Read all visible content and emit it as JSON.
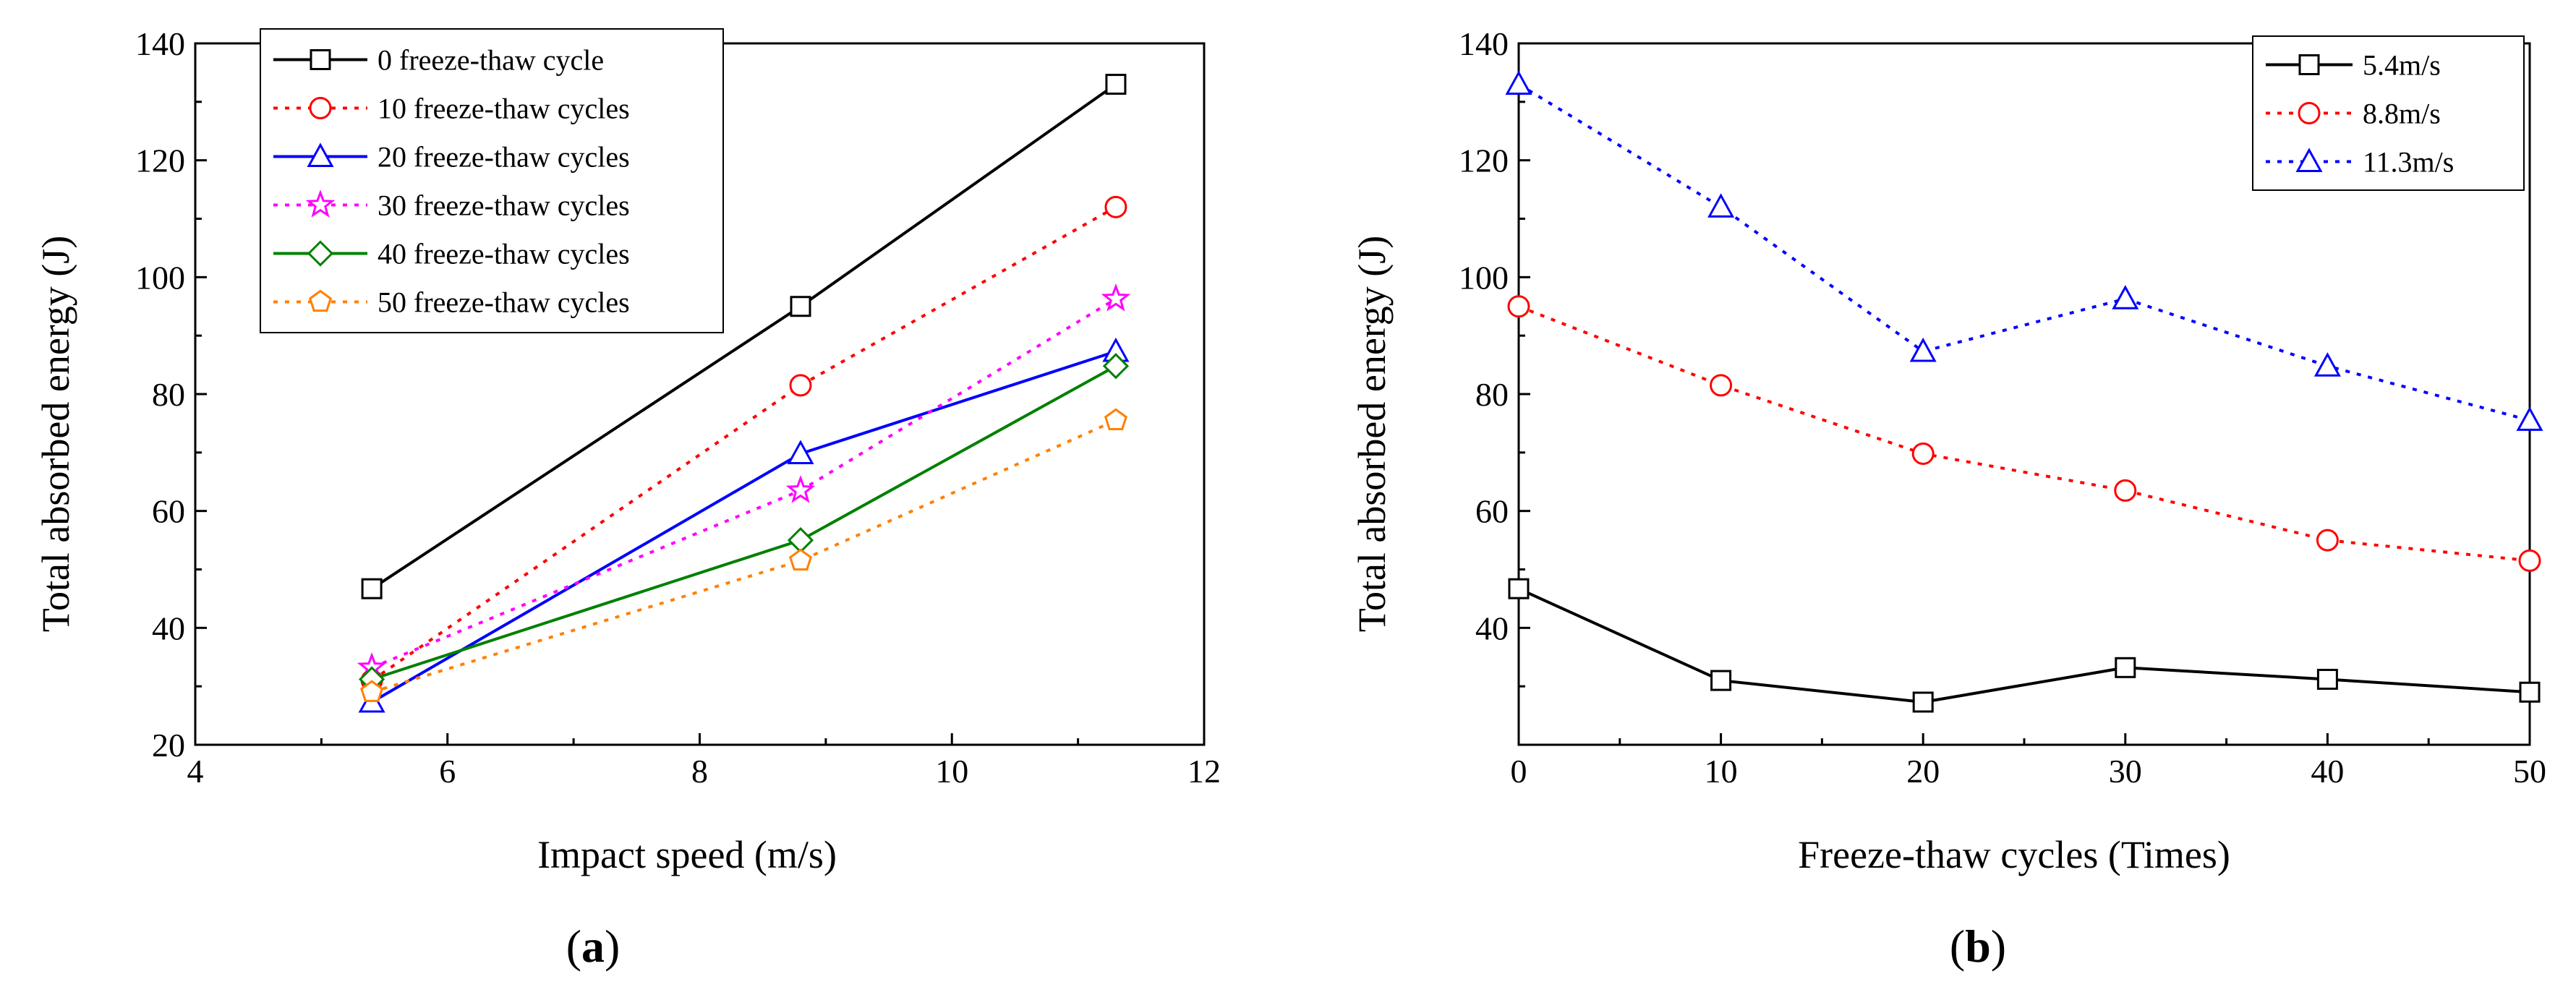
{
  "chart_data": [
    {
      "type": "line",
      "panel_label_prefix": "(",
      "panel_label_letter": "a",
      "panel_label_suffix": ")",
      "xlabel": "Impact speed (m/s)",
      "ylabel": "Total absorbed energy (J)",
      "xlim": [
        4,
        12
      ],
      "ylim": [
        20,
        140
      ],
      "xticks": [
        4,
        6,
        8,
        10,
        12
      ],
      "yticks": [
        20,
        40,
        60,
        80,
        100,
        120,
        140
      ],
      "legend_position": "top-left",
      "x": [
        5.4,
        8.8,
        11.3
      ],
      "series": [
        {
          "name": "0 freeze-thaw cycle",
          "values": [
            46.7,
            95.0,
            133.0
          ],
          "color": "#000000",
          "dash": "solid",
          "marker": "square"
        },
        {
          "name": "10 freeze-thaw cycles",
          "values": [
            31.0,
            81.5,
            112.0
          ],
          "color": "#ff0000",
          "dash": "dot",
          "marker": "circle"
        },
        {
          "name": "20 freeze-thaw cycles",
          "values": [
            27.3,
            69.8,
            87.3
          ],
          "color": "#0000ff",
          "dash": "solid",
          "marker": "triangle"
        },
        {
          "name": "30 freeze-thaw cycles",
          "values": [
            33.2,
            63.5,
            96.3
          ],
          "color": "#ff00ff",
          "dash": "dot",
          "marker": "star"
        },
        {
          "name": "40 freeze-thaw cycles",
          "values": [
            31.2,
            55.0,
            84.8
          ],
          "color": "#008000",
          "dash": "solid",
          "marker": "diamond"
        },
        {
          "name": "50 freeze-thaw cycles",
          "values": [
            29.0,
            51.5,
            75.5
          ],
          "color": "#ff8000",
          "dash": "dot",
          "marker": "pentagon"
        }
      ]
    },
    {
      "type": "line",
      "panel_label_prefix": "(",
      "panel_label_letter": "b",
      "panel_label_suffix": ")",
      "xlabel": "Freeze-thaw cycles (Times)",
      "ylabel": "Total absorbed energy (J)",
      "xlim": [
        0,
        50
      ],
      "ylim": [
        20,
        140
      ],
      "xticks": [
        0,
        10,
        20,
        30,
        40,
        50
      ],
      "yticks": [
        40,
        60,
        80,
        100,
        120,
        140
      ],
      "legend_position": "top-right",
      "x": [
        0,
        10,
        20,
        30,
        40,
        50
      ],
      "series": [
        {
          "name": "5.4m/s",
          "values": [
            46.7,
            31.0,
            27.3,
            33.2,
            31.2,
            29.0
          ],
          "color": "#000000",
          "dash": "solid",
          "marker": "square"
        },
        {
          "name": "8.8m/s",
          "values": [
            95.0,
            81.5,
            69.8,
            63.5,
            55.0,
            51.5
          ],
          "color": "#ff0000",
          "dash": "dot",
          "marker": "circle"
        },
        {
          "name": "11.3m/s",
          "values": [
            133.0,
            112.0,
            87.3,
            96.3,
            84.8,
            75.5
          ],
          "color": "#0000ff",
          "dash": "dot",
          "marker": "triangle"
        }
      ]
    }
  ]
}
